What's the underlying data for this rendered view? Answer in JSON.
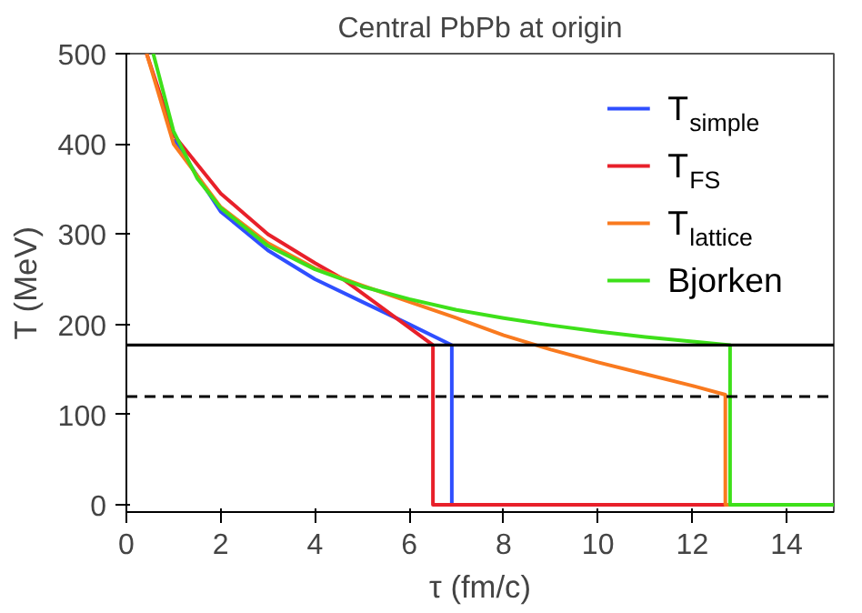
{
  "chart_data": {
    "type": "line",
    "title": "Central PbPb at origin",
    "xlabel": "τ (fm/c)",
    "ylabel": "T (MeV)",
    "xlim": [
      0,
      15
    ],
    "ylim": [
      -8,
      500
    ],
    "xticks": [
      0,
      2,
      4,
      6,
      8,
      10,
      12,
      14
    ],
    "yticks": [
      0,
      100,
      200,
      300,
      400,
      500
    ],
    "grid": false,
    "legend": "top right",
    "line_style": "solid",
    "marker": "none",
    "series": [
      {
        "name": "T$_{simple}$",
        "color": "#2f4fff",
        "x": [
          1,
          2,
          3,
          4,
          5,
          6,
          6.9,
          6.9,
          15
        ],
        "values": [
          405,
          325,
          282,
          250,
          225,
          200,
          177,
          0,
          0
        ]
      },
      {
        "name": "T$_{FS}$",
        "color": "#e8202a",
        "x": [
          0.43,
          1,
          2,
          3,
          4,
          4.6,
          6.5,
          6.5,
          15
        ],
        "values": [
          500,
          410,
          345,
          300,
          268,
          250,
          177,
          0,
          0
        ]
      },
      {
        "name": "T$_{lattice}$",
        "color": "#f97a1f",
        "x": [
          0.43,
          1,
          2,
          3,
          4,
          5,
          6,
          7,
          8,
          9,
          10,
          11,
          12,
          12.7,
          12.7,
          15
        ],
        "values": [
          500,
          400,
          330,
          290,
          262,
          243,
          225,
          207,
          188,
          172,
          158,
          145,
          132,
          122,
          0,
          0
        ]
      },
      {
        "name": "Bjorken",
        "color": "#3ee01a",
        "x": [
          0.57,
          1,
          1.5,
          2,
          3,
          4,
          5,
          6,
          7,
          8,
          9,
          10,
          11,
          12,
          12.8,
          12.8,
          15
        ],
        "values": [
          500,
          414,
          362,
          329,
          287,
          261,
          242,
          228,
          216,
          207,
          199,
          192,
          186,
          181,
          177,
          0,
          0
        ]
      }
    ],
    "ref_lines": [
      {
        "axis": "y",
        "value": 177,
        "line_style": "solid",
        "color": "#000000"
      },
      {
        "axis": "y",
        "value": 120,
        "line_style": "dashed",
        "color": "#000000"
      }
    ]
  }
}
